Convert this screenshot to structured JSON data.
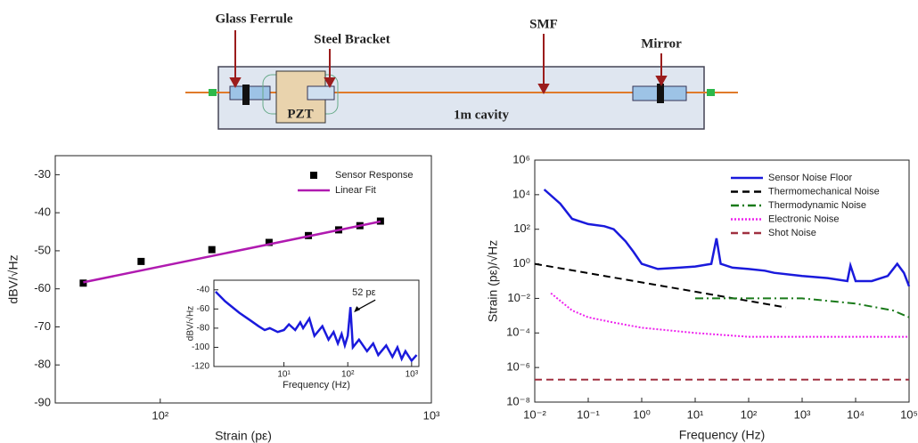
{
  "diagram": {
    "labels": {
      "ferrule": "Glass Ferrule",
      "bracket": "Steel Bracket",
      "fiber": "SMF",
      "mirror": "Mirror",
      "pzt": "PZT",
      "cavity": "1m cavity"
    }
  },
  "chart_data": [
    {
      "type": "line",
      "xlabel": "Strain (pε)",
      "ylabel": "dBV/√Hz",
      "xscale": "log",
      "xlim": [
        41,
        1000
      ],
      "ylim": [
        -90,
        -25
      ],
      "xticks": [
        {
          "value": 100,
          "label": "10²"
        },
        {
          "value": 1000,
          "label": "10³"
        }
      ],
      "yticks": [
        -90,
        -80,
        -70,
        -60,
        -50,
        -40,
        -30
      ],
      "legend": "upper right",
      "series": [
        {
          "name": "Sensor Response",
          "color": "#000000",
          "mode": "markers",
          "x": [
            52,
            85,
            155,
            252,
            352,
            455,
            545,
            649
          ],
          "values": [
            -58.5,
            -52.8,
            -49.7,
            -47.8,
            -46.0,
            -44.5,
            -43.4,
            -42.2
          ]
        },
        {
          "name": "Linear Fit",
          "color": "#b01ab0",
          "mode": "solid",
          "x": [
            52,
            649
          ],
          "values": [
            -58.3,
            -42.3
          ]
        }
      ]
    },
    {
      "type": "line",
      "xlabel": "Frequency (Hz)",
      "ylabel": "dBV/√Hz",
      "xscale": "log",
      "xlim": [
        0.8,
        1300
      ],
      "ylim": [
        -120,
        -30
      ],
      "xticks": [
        {
          "value": 10,
          "label": "10¹"
        },
        {
          "value": 100,
          "label": "10²"
        },
        {
          "value": 1000,
          "label": "10³"
        }
      ],
      "yticks": [
        -120,
        -100,
        -80,
        -60,
        -40
      ],
      "annotation": "52 pε",
      "series": [
        {
          "color": "#1a1adc",
          "mode": "solid",
          "x": [
            0.85,
            1.2,
            2,
            3,
            4,
            5,
            6,
            8,
            10,
            12,
            15,
            18,
            20,
            25,
            30,
            40,
            50,
            60,
            70,
            80,
            90,
            100,
            110,
            120,
            150,
            200,
            250,
            300,
            400,
            500,
            600,
            700,
            800,
            1000,
            1200
          ],
          "values": [
            -42,
            -52,
            -64,
            -72,
            -78,
            -82,
            -80,
            -84,
            -82,
            -76,
            -82,
            -74,
            -80,
            -70,
            -88,
            -78,
            -92,
            -84,
            -96,
            -86,
            -98,
            -88,
            -58,
            -100,
            -92,
            -104,
            -96,
            -108,
            -98,
            -110,
            -100,
            -112,
            -104,
            -114,
            -108
          ]
        }
      ]
    },
    {
      "type": "line",
      "xlabel": "Frequency (Hz)",
      "ylabel": "Strain (pε)/√Hz",
      "xscale": "log",
      "yscale": "log",
      "xlim": [
        0.01,
        100000
      ],
      "ylim": [
        1e-08,
        1000000
      ],
      "xticks": [
        {
          "value": 0.01,
          "label": "10⁻²"
        },
        {
          "value": 0.1,
          "label": "10⁻¹"
        },
        {
          "value": 1,
          "label": "10⁰"
        },
        {
          "value": 10,
          "label": "10¹"
        },
        {
          "value": 100,
          "label": "10²"
        },
        {
          "value": 1000,
          "label": "10³"
        },
        {
          "value": 10000,
          "label": "10⁴"
        },
        {
          "value": 100000,
          "label": "10⁵"
        }
      ],
      "yticks": [
        {
          "value": 1e-08,
          "label": "10⁻⁸"
        },
        {
          "value": 1e-06,
          "label": "10⁻⁶"
        },
        {
          "value": 0.0001,
          "label": "10⁻⁴"
        },
        {
          "value": 0.01,
          "label": "10⁻²"
        },
        {
          "value": 1,
          "label": "10⁰"
        },
        {
          "value": 100,
          "label": "10²"
        },
        {
          "value": 10000,
          "label": "10⁴"
        },
        {
          "value": 1000000,
          "label": "10⁶"
        }
      ],
      "legend": "upper right",
      "series": [
        {
          "name": "Sensor Noise Floor",
          "color": "#1a1adc",
          "mode": "solid",
          "x": [
            0.015,
            0.03,
            0.05,
            0.1,
            0.2,
            0.3,
            0.5,
            0.7,
            1,
            2,
            5,
            10,
            20,
            25,
            30,
            50,
            100,
            200,
            300,
            1000,
            3000,
            7000,
            8000,
            10000,
            20000,
            40000,
            60000,
            80000,
            100000
          ],
          "values": [
            20000,
            3000,
            400,
            200,
            150,
            100,
            20,
            5,
            1,
            0.5,
            0.6,
            0.7,
            1,
            30,
            1,
            0.6,
            0.5,
            0.4,
            0.3,
            0.2,
            0.15,
            0.1,
            0.8,
            0.1,
            0.1,
            0.2,
            1,
            0.3,
            0.05
          ]
        },
        {
          "name": "Thermomechanical Noise",
          "color": "#000000",
          "mode": "dashed",
          "x": [
            0.01,
            500
          ],
          "values": [
            1,
            0.003
          ]
        },
        {
          "name": "Thermodynamic Noise",
          "color": "#1a7a1a",
          "mode": "dashdot",
          "x": [
            10,
            1000,
            10000,
            50000,
            100000
          ],
          "values": [
            0.01,
            0.01,
            0.005,
            0.002,
            0.0008
          ]
        },
        {
          "name": "Electronic Noise",
          "color": "#ee22ee",
          "mode": "dotted",
          "x": [
            0.02,
            0.05,
            0.1,
            0.3,
            1,
            10,
            100,
            1000,
            100000
          ],
          "values": [
            0.02,
            0.002,
            0.0008,
            0.0004,
            0.0002,
            0.0001,
            6e-05,
            6e-05,
            6e-05
          ]
        },
        {
          "name": "Shot Noise",
          "color": "#a03040",
          "mode": "dashed",
          "x": [
            0.01,
            100000
          ],
          "values": [
            2e-07,
            2e-07
          ]
        }
      ]
    }
  ]
}
